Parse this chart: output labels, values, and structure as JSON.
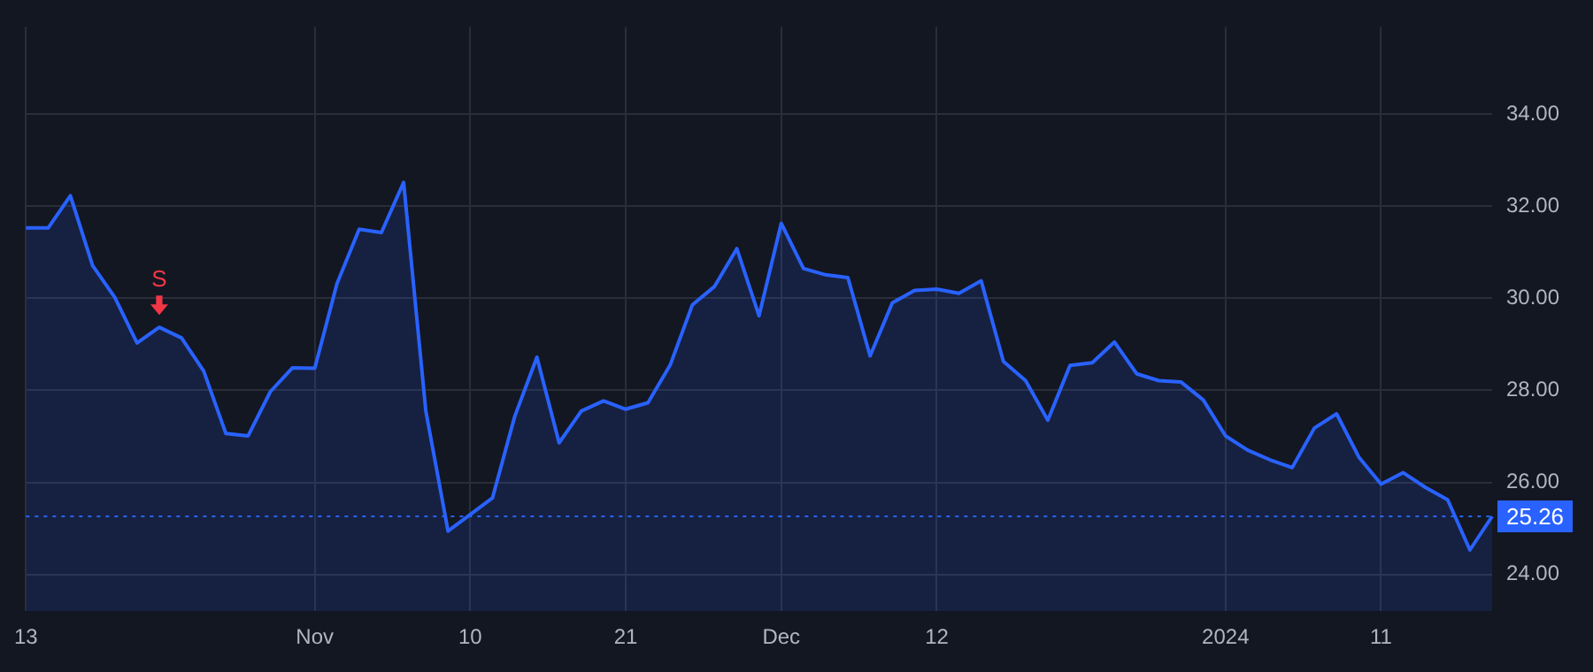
{
  "chart_data": {
    "type": "area",
    "categories": [
      "13",
      null,
      null,
      null,
      null,
      null,
      null,
      null,
      null,
      null,
      null,
      null,
      null,
      "Nov",
      null,
      null,
      null,
      null,
      null,
      null,
      "10",
      null,
      null,
      null,
      null,
      null,
      null,
      "21",
      null,
      null,
      null,
      null,
      null,
      null,
      "Dec",
      null,
      null,
      null,
      null,
      null,
      null,
      "12",
      null,
      null,
      null,
      null,
      null,
      null,
      null,
      null,
      null,
      null,
      null,
      null,
      "2024",
      null,
      null,
      null,
      null,
      null,
      null,
      "11",
      null,
      null,
      null,
      null,
      null
    ],
    "series": [
      {
        "color": "#2962ff",
        "values": [
          31.53,
          31.53,
          32.23,
          30.71,
          30.02,
          29.03,
          29.37,
          29.14,
          28.42,
          27.06,
          27.01,
          27.97,
          28.49,
          28.48,
          30.32,
          31.5,
          31.43,
          32.52,
          27.55,
          24.94,
          25.3,
          25.66,
          27.43,
          28.72,
          26.86,
          27.55,
          27.77,
          27.59,
          27.73,
          28.55,
          29.86,
          30.26,
          31.08,
          29.62,
          31.63,
          30.65,
          30.51,
          30.45,
          28.75,
          29.9,
          30.17,
          30.2,
          30.11,
          30.38,
          28.63,
          28.21,
          27.35,
          28.54,
          28.6,
          29.05,
          28.36,
          28.21,
          28.18,
          27.79,
          27.01,
          26.7,
          26.49,
          26.32,
          27.18,
          27.49,
          26.55,
          25.96,
          26.21,
          25.89,
          25.62,
          24.53,
          25.26
        ]
      }
    ],
    "ylim": [
      23.2,
      35.9
    ],
    "yticks": [
      {
        "value": 24,
        "label": "24.00"
      },
      {
        "value": 26,
        "label": "26.00"
      },
      {
        "value": 28,
        "label": "28.00"
      },
      {
        "value": 30,
        "label": "30.00"
      },
      {
        "value": 32,
        "label": "32.00"
      },
      {
        "value": 34,
        "label": "34.00"
      }
    ],
    "ref_lines": [
      {
        "axis": "y",
        "value": 25.26,
        "label": "25.26",
        "color": "#2962ff",
        "line_style": "dotted"
      }
    ],
    "annotations": [
      {
        "text": "S",
        "y": 29.37
      }
    ],
    "grid": true,
    "legend": false,
    "marker": "none",
    "line_style": "solid"
  }
}
